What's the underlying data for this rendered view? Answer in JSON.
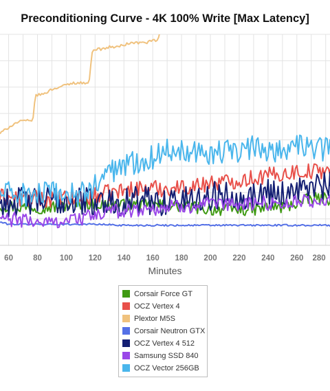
{
  "chart_data": {
    "type": "line",
    "title": "Preconditioning Curve - 4K 100% Write [Max Latency]",
    "xlabel": "Minutes",
    "ylabel": "",
    "xlim": [
      54,
      283
    ],
    "ylim": [
      0,
      100
    ],
    "xticks": [
      60,
      80,
      100,
      120,
      140,
      160,
      180,
      200,
      220,
      240,
      260,
      280
    ],
    "grid": true,
    "legend_placement": "bottom-center",
    "series": [
      {
        "name": "Corsair Force GT",
        "color": "#3f9a13",
        "x": [
          54,
          70,
          90,
          110,
          130,
          150,
          170,
          190,
          200,
          210,
          220,
          230,
          240,
          250,
          260,
          270,
          283
        ],
        "y": [
          19,
          18,
          18,
          20,
          19,
          19,
          19,
          18,
          17,
          17,
          17,
          17,
          18,
          18,
          20,
          22,
          22
        ]
      },
      {
        "name": "OCZ Vertex 4",
        "color": "#e8504a",
        "x": [
          54,
          70,
          90,
          110,
          130,
          150,
          170,
          190,
          200,
          210,
          220,
          230,
          240,
          250,
          260,
          270,
          283
        ],
        "y": [
          23,
          22,
          22,
          22,
          25,
          27,
          27,
          28,
          30,
          30,
          31,
          32,
          33,
          34,
          35,
          35,
          36
        ]
      },
      {
        "name": "Plextor M5S",
        "color": "#f0c27e",
        "x": [
          54,
          56,
          60,
          65,
          70,
          75,
          77,
          78,
          79,
          85,
          90,
          95,
          100,
          105,
          110,
          115,
          116,
          117,
          118,
          120,
          125,
          130,
          135,
          140,
          145,
          150,
          155,
          160,
          162,
          164,
          165,
          166
        ],
        "y": [
          53,
          54,
          56,
          58,
          59,
          59,
          60,
          68,
          71,
          72,
          74,
          75,
          76,
          77,
          77,
          77,
          78,
          86,
          92,
          93,
          93,
          94,
          94,
          95,
          96,
          96,
          96,
          97,
          97,
          98,
          101,
          105
        ]
      },
      {
        "name": "Corsair Neutron GTX",
        "color": "#5470e6",
        "x": [
          54,
          60,
          70,
          80,
          90,
          100,
          110,
          120,
          140,
          160,
          180,
          200,
          220,
          240,
          260,
          283
        ],
        "y": [
          11,
          10,
          10,
          10,
          10,
          10,
          10,
          10,
          9.5,
          9.5,
          9.5,
          9.5,
          9.5,
          9.5,
          9.5,
          9.5
        ]
      },
      {
        "name": "OCZ Vertex 4 512",
        "color": "#141f73",
        "x": [
          54,
          70,
          90,
          110,
          130,
          150,
          170,
          190,
          200,
          210,
          220,
          230,
          240,
          250,
          260,
          270,
          283
        ],
        "y": [
          20,
          21,
          21,
          21,
          21,
          21,
          21,
          22,
          23,
          24,
          24,
          23,
          26,
          24,
          27,
          27,
          28
        ]
      },
      {
        "name": "Samsung SSD 840",
        "color": "#9a47e8",
        "x": [
          54,
          60,
          70,
          80,
          90,
          100,
          110,
          120,
          130,
          150,
          170,
          190,
          210,
          230,
          250,
          270,
          283
        ],
        "y": [
          13,
          12,
          12,
          11,
          11,
          12,
          13,
          14,
          16,
          17,
          18,
          19,
          19,
          20,
          20,
          21,
          21
        ]
      },
      {
        "name": "OCZ Vector 256GB",
        "color": "#4ab6ec",
        "x": [
          54,
          70,
          90,
          110,
          120,
          130,
          140,
          150,
          160,
          170,
          180,
          190,
          200,
          210,
          220,
          230,
          240,
          250,
          260,
          270,
          283
        ],
        "y": [
          25,
          24,
          24,
          24,
          28,
          35,
          38,
          40,
          42,
          45,
          46,
          45,
          44,
          44,
          45,
          46,
          46,
          45,
          47,
          46,
          46
        ]
      }
    ]
  }
}
